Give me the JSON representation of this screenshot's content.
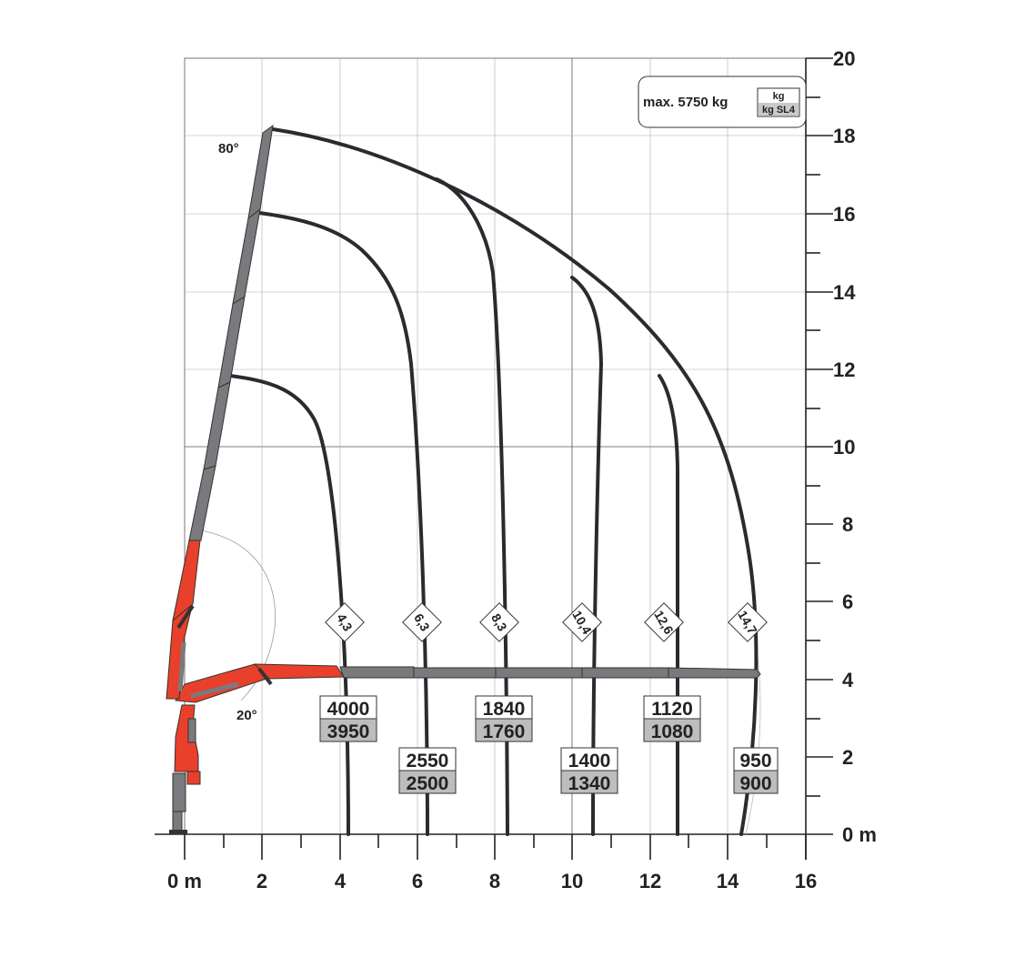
{
  "x_axis": {
    "ticks": [
      "0 m",
      "2",
      "4",
      "6",
      "8",
      "10",
      "12",
      "14",
      "16"
    ]
  },
  "y_axis": {
    "ticks": [
      "0 m",
      "2",
      "4",
      "6",
      "8",
      "10",
      "12",
      "14",
      "16",
      "18",
      "20"
    ]
  },
  "legend": {
    "max_load": "max. 5750 kg",
    "unit_top": "kg",
    "unit_bottom": "kg SL4"
  },
  "angles": {
    "upper": "80°",
    "lower": "20°"
  },
  "reach_labels": [
    "4,3",
    "6,3",
    "8,3",
    "10,4",
    "12,6",
    "14,7"
  ],
  "loads": [
    {
      "kg": "4000",
      "sl4": "3950"
    },
    {
      "kg": "2550",
      "sl4": "2500"
    },
    {
      "kg": "1840",
      "sl4": "1760"
    },
    {
      "kg": "1400",
      "sl4": "1340"
    },
    {
      "kg": "1120",
      "sl4": "1080"
    },
    {
      "kg": "950",
      "sl4": "900"
    }
  ],
  "colors": {
    "boom_red": "#e8402a",
    "boom_gray": "#7a7a7e",
    "curve": "#2a2a30"
  }
}
